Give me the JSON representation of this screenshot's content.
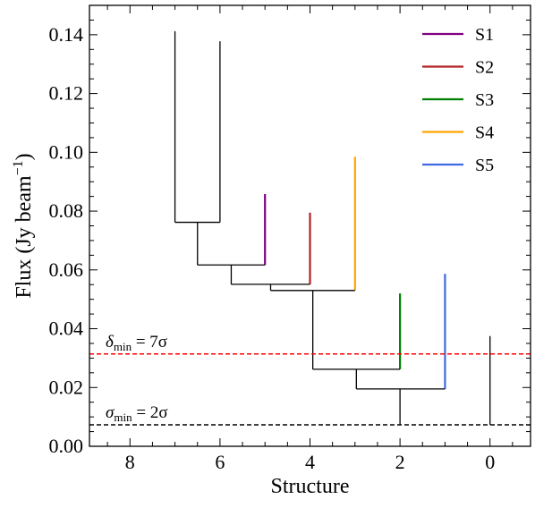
{
  "chart_data": {
    "type": "dendrogram",
    "xlabel": "Structure",
    "ylabel_main": "Flux (Jy beam",
    "ylabel_sup": "−1",
    "ylabel_close": ")",
    "xlim": [
      8.9,
      -0.9
    ],
    "ylim": [
      0.0,
      0.15
    ],
    "xticks": [
      8,
      6,
      4,
      2,
      0
    ],
    "yticks": [
      0.0,
      0.02,
      0.04,
      0.06,
      0.08,
      0.1,
      0.12,
      0.14
    ],
    "ytick_labels": [
      "0.00",
      "0.02",
      "0.04",
      "0.06",
      "0.08",
      "0.10",
      "0.12",
      "0.14"
    ],
    "xtick_labels": [
      "8",
      "6",
      "4",
      "2",
      "0"
    ],
    "leaves": [
      {
        "x": 7,
        "base": 0.0762,
        "peak": 0.1412,
        "color": "#000000"
      },
      {
        "x": 6,
        "base": 0.0762,
        "peak": 0.1378,
        "color": "#000000"
      },
      {
        "x": 5,
        "base": 0.0617,
        "peak": 0.0858,
        "color": "#800080",
        "name": "S1"
      },
      {
        "x": 4,
        "base": 0.0551,
        "peak": 0.0795,
        "color": "#b22222",
        "name": "S2"
      },
      {
        "x": 3,
        "base": 0.053,
        "peak": 0.0985,
        "color": "#ffa500",
        "name": "S4"
      },
      {
        "x": 2,
        "base": 0.0262,
        "peak": 0.052,
        "color": "#008000",
        "name": "S3"
      },
      {
        "x": 1,
        "base": 0.0195,
        "peak": 0.0587,
        "color": "#4169e1",
        "name": "S5"
      },
      {
        "x": 2,
        "base": 0.0073,
        "peak": 0.0195,
        "color": "#000000"
      },
      {
        "x": 0,
        "base": 0.0073,
        "peak": 0.0375,
        "color": "#000000"
      }
    ],
    "merges": [
      {
        "x1": 7,
        "x2": 6,
        "level": 0.0762,
        "stem_x": 6.5,
        "stem_to": 0.0617
      },
      {
        "x1": 6.5,
        "x2": 5,
        "level": 0.0617,
        "stem_x": 5.75,
        "stem_to": 0.0551
      },
      {
        "x1": 5.75,
        "x2": 4,
        "level": 0.0551,
        "stem_x": 4.875,
        "stem_to": 0.053
      },
      {
        "x1": 4.875,
        "x2": 3,
        "level": 0.053,
        "stem_x": 3.9375,
        "stem_to": 0.0262
      },
      {
        "x1": 3.9375,
        "x2": 2,
        "level": 0.0262,
        "stem_x": 2.97,
        "stem_to": 0.0195
      },
      {
        "x1": 2.97,
        "x2": 1,
        "level": 0.0195,
        "stem_x": null,
        "stem_to": null
      }
    ],
    "hlines": [
      {
        "y": 0.0314,
        "color": "#ff0000",
        "label_symbol": "δ",
        "label_sub": "min",
        "label_rest": " = 7σ"
      },
      {
        "y": 0.0073,
        "color": "#000000",
        "label_symbol": "σ",
        "label_sub": "min",
        "label_rest": " = 2σ"
      }
    ],
    "legend": {
      "placement": "top-right",
      "entries": [
        {
          "name": "S1",
          "color": "#800080"
        },
        {
          "name": "S2",
          "color": "#b22222"
        },
        {
          "name": "S3",
          "color": "#008000"
        },
        {
          "name": "S4",
          "color": "#ffa500"
        },
        {
          "name": "S5",
          "color": "#4169e1"
        }
      ]
    }
  }
}
